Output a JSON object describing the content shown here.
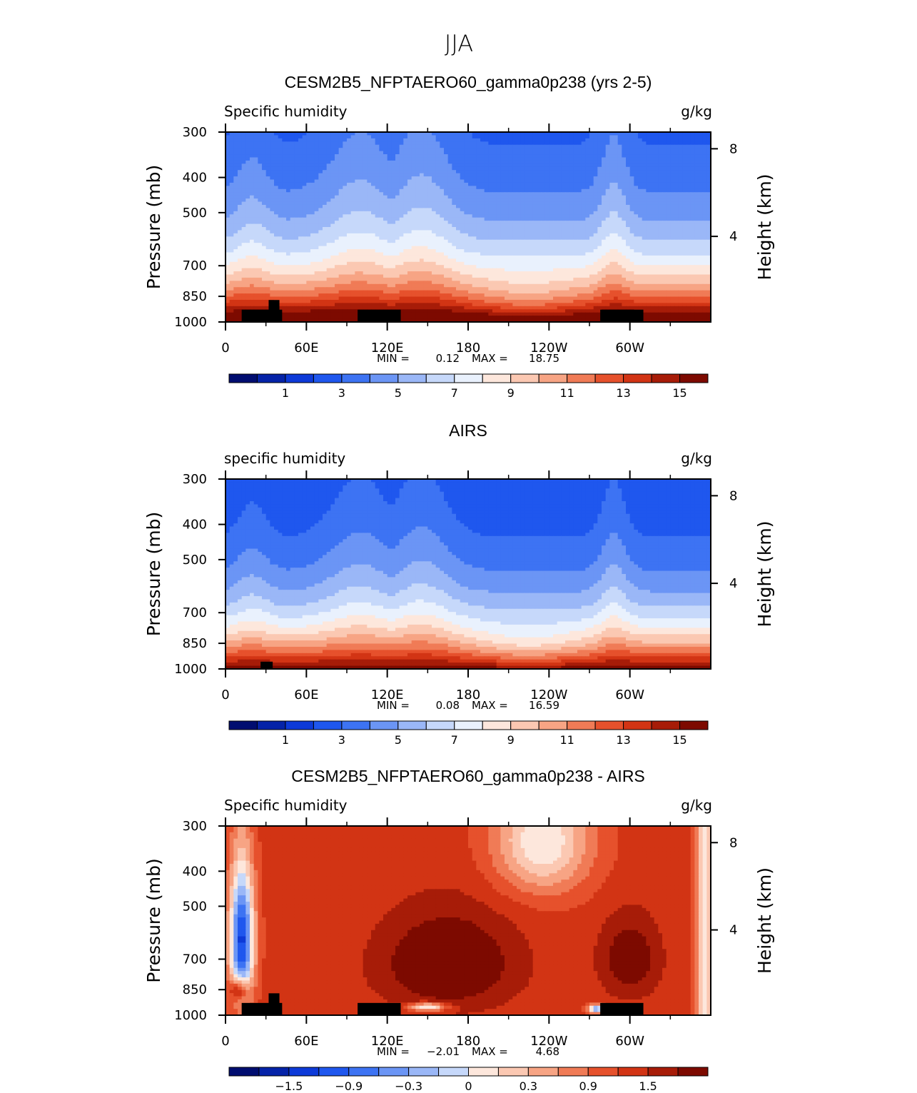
{
  "figure_title": "JJA",
  "chart_data": [
    {
      "type": "heatmap",
      "title": "CESM2B5_NFPTAERO60_gamma0p238 (yrs 2-5)",
      "variable_label": "Specific humidity",
      "units": "g/kg",
      "ylabel": "Pressure (mb)",
      "ylabel_right": "Height (km)",
      "pressure_ticks": [
        "300",
        "400",
        "500",
        "700",
        "850",
        "1000"
      ],
      "height_ticks": [
        "8",
        "4"
      ],
      "longitude_ticks": [
        "0",
        "60E",
        "120E",
        "180",
        "120W",
        "60W"
      ],
      "stats": {
        "min_label": "MIN =",
        "min": "0.12",
        "max_label": "MAX =",
        "max": "18.75"
      },
      "colorbar_labels": [
        "1",
        "3",
        "5",
        "7",
        "9",
        "11",
        "13",
        "15"
      ],
      "colorbar_levels": [
        0,
        1,
        2,
        3,
        4,
        5,
        6,
        7,
        8,
        9,
        10,
        11,
        12,
        13,
        14,
        15,
        16
      ],
      "colors": [
        "#000d70",
        "#0523a8",
        "#0d3ad8",
        "#1f57ee",
        "#3d73f3",
        "#6b95f5",
        "#9ab7f7",
        "#c6d8fa",
        "#e9f1fd",
        "#fde7dc",
        "#fbc8b2",
        "#f7a484",
        "#f07b56",
        "#e6512c",
        "#d23414",
        "#a71c08",
        "#7d0a00"
      ],
      "field_params": {
        "mode": "abs",
        "aBase": 3.6,
        "aRidge": 1.0,
        "bot": 17.6,
        "scale": 4.3,
        "topoHigh": true
      }
    },
    {
      "type": "heatmap",
      "title": "AIRS",
      "variable_label": "specific humidity",
      "units": "g/kg",
      "ylabel": "Pressure (mb)",
      "ylabel_right": "Height (km)",
      "pressure_ticks": [
        "300",
        "400",
        "500",
        "700",
        "850",
        "1000"
      ],
      "height_ticks": [
        "8",
        "4"
      ],
      "longitude_ticks": [
        "0",
        "60E",
        "120E",
        "180",
        "120W",
        "60W"
      ],
      "stats": {
        "min_label": "MIN =",
        "min": "0.08",
        "max_label": "MAX =",
        "max": "16.59"
      },
      "colorbar_labels": [
        "1",
        "3",
        "5",
        "7",
        "9",
        "11",
        "13",
        "15"
      ],
      "colorbar_levels": [
        0,
        1,
        2,
        3,
        4,
        5,
        6,
        7,
        8,
        9,
        10,
        11,
        12,
        13,
        14,
        15,
        16
      ],
      "colors": [
        "#000d70",
        "#0523a8",
        "#0d3ad8",
        "#1f57ee",
        "#3d73f3",
        "#6b95f5",
        "#9ab7f7",
        "#c6d8fa",
        "#e9f1fd",
        "#fde7dc",
        "#fbc8b2",
        "#f7a484",
        "#f07b56",
        "#e6512c",
        "#d23414",
        "#a71c08",
        "#7d0a00"
      ],
      "field_params": {
        "mode": "abs",
        "aBase": 3.2,
        "aRidge": 0.9,
        "bot": 15.8,
        "scale": 4.0,
        "topoHigh": false
      }
    },
    {
      "type": "heatmap",
      "title": "CESM2B5_NFPTAERO60_gamma0p238 - AIRS",
      "variable_label": "Specific humidity",
      "units": "g/kg",
      "ylabel": "Pressure (mb)",
      "ylabel_right": "Height (km)",
      "pressure_ticks": [
        "300",
        "400",
        "500",
        "700",
        "850",
        "1000"
      ],
      "height_ticks": [
        "8",
        "4"
      ],
      "longitude_ticks": [
        "0",
        "60E",
        "120E",
        "180",
        "120W",
        "60W"
      ],
      "stats": {
        "min_label": "MIN =",
        "min": "−2.01",
        "max_label": "MAX =",
        "max": "4.68"
      },
      "colorbar_labels": [
        "−1.5",
        "−0.9",
        "−0.3",
        "0",
        "0.3",
        "0.9",
        "1.5"
      ],
      "colorbar_levels": [
        -2.1,
        -1.8,
        -1.5,
        -1.2,
        -0.9,
        -0.6,
        -0.3,
        0,
        0.3,
        0.6,
        0.9,
        1.2,
        1.5,
        1.8,
        2.1
      ],
      "colors": [
        "#000d70",
        "#0523a8",
        "#0d3ad8",
        "#1f57ee",
        "#3d73f3",
        "#6b95f5",
        "#9ab7f7",
        "#c6d8fa",
        "#fde7dc",
        "#fbc8b2",
        "#f7a484",
        "#f07b56",
        "#e6512c",
        "#d23414",
        "#a71c08",
        "#7d0a00"
      ],
      "field_params": {
        "mode": "diff",
        "topoHigh": true
      }
    }
  ]
}
